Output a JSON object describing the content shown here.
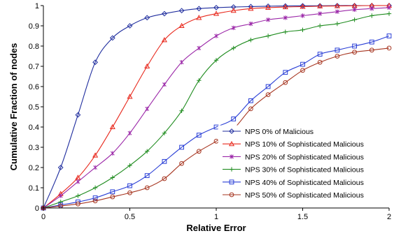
{
  "chart_data": {
    "type": "line",
    "title": "",
    "xlabel": "Relative Error",
    "ylabel": "Cumulative Fraction of nodes",
    "xlim": [
      0,
      2
    ],
    "ylim": [
      0,
      1
    ],
    "x_ticks": [
      "0",
      "0.5",
      "1",
      "1.5",
      "2"
    ],
    "y_ticks": [
      "0",
      "0.1",
      "0.2",
      "0.3",
      "0.4",
      "0.5",
      "0.6",
      "0.7",
      "0.8",
      "0.9",
      "1"
    ],
    "grid": false,
    "legend_position": "bottom-right",
    "x": [
      0,
      0.1,
      0.2,
      0.3,
      0.4,
      0.5,
      0.6,
      0.7,
      0.8,
      0.9,
      1.0,
      1.1,
      1.2,
      1.3,
      1.4,
      1.5,
      1.6,
      1.7,
      1.8,
      1.9,
      2.0
    ],
    "series": [
      {
        "name": "NPS 0% of Malicious",
        "color": "#1f2d9e",
        "marker": "diamond",
        "values": [
          0,
          0.2,
          0.46,
          0.72,
          0.84,
          0.9,
          0.94,
          0.96,
          0.975,
          0.985,
          0.99,
          0.993,
          0.995,
          0.997,
          0.998,
          0.999,
          0.999,
          1.0,
          1.0,
          1.0,
          1.0
        ]
      },
      {
        "name": "NPS 10% of Sophisticated Malicious",
        "color": "#e8281c",
        "marker": "triangle",
        "values": [
          0,
          0.07,
          0.15,
          0.26,
          0.4,
          0.55,
          0.7,
          0.83,
          0.9,
          0.94,
          0.96,
          0.975,
          0.985,
          0.99,
          0.993,
          0.995,
          0.997,
          0.998,
          0.999,
          1.0,
          1.0
        ]
      },
      {
        "name": "NPS 20% of Sophisticated Malicious",
        "color": "#9b27a8",
        "marker": "star",
        "values": [
          0,
          0.06,
          0.13,
          0.2,
          0.27,
          0.37,
          0.49,
          0.61,
          0.72,
          0.79,
          0.85,
          0.89,
          0.91,
          0.93,
          0.94,
          0.95,
          0.96,
          0.97,
          0.98,
          0.985,
          0.99
        ]
      },
      {
        "name": "NPS 30% of Sophisticated Malicious",
        "color": "#1f8c1f",
        "marker": "plus",
        "values": [
          0,
          0.03,
          0.06,
          0.1,
          0.15,
          0.21,
          0.28,
          0.37,
          0.48,
          0.63,
          0.73,
          0.79,
          0.83,
          0.85,
          0.87,
          0.88,
          0.9,
          0.91,
          0.93,
          0.95,
          0.96
        ]
      },
      {
        "name": "NPS 40% of Sophisticated Malicious",
        "color": "#2a3fd6",
        "marker": "square",
        "values": [
          0,
          0.015,
          0.03,
          0.05,
          0.08,
          0.11,
          0.16,
          0.23,
          0.3,
          0.36,
          0.4,
          0.44,
          0.53,
          0.6,
          0.67,
          0.71,
          0.76,
          0.78,
          0.8,
          0.82,
          0.85
        ]
      },
      {
        "name": "NPS 50% of Sophisticated Malicious",
        "color": "#a6341f",
        "marker": "circle",
        "values": [
          0,
          0.01,
          0.02,
          0.035,
          0.055,
          0.075,
          0.1,
          0.145,
          0.22,
          0.28,
          0.33,
          0.39,
          0.49,
          0.56,
          0.62,
          0.68,
          0.72,
          0.75,
          0.77,
          0.78,
          0.79
        ]
      }
    ]
  }
}
